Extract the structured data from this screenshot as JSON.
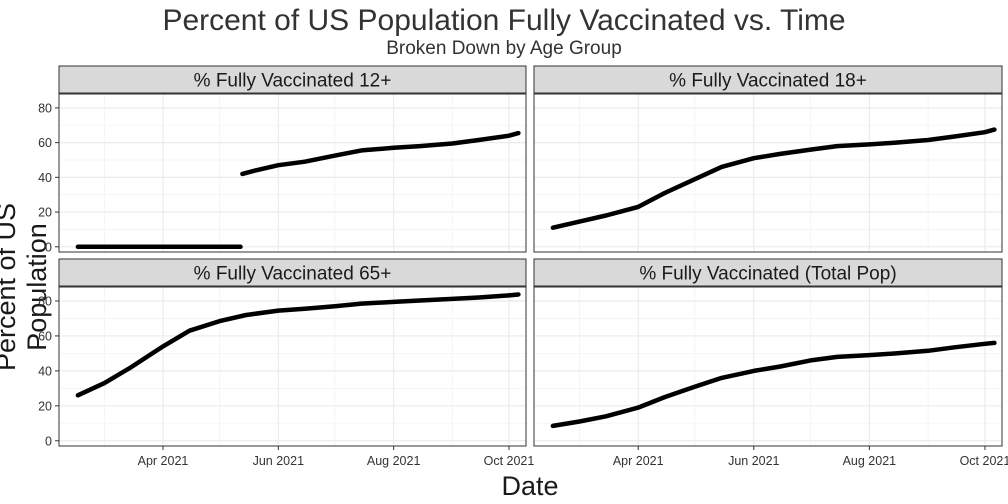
{
  "chart_data": {
    "type": "line",
    "title": "Percent of US Population Fully Vaccinated vs. Time",
    "subtitle": "Broken Down by Age Group",
    "xlabel": "Date",
    "ylabel": "Percent of US Population",
    "ylim": [
      -3,
      88
    ],
    "yticks": [
      0,
      20,
      40,
      60,
      80
    ],
    "xlim": [
      "2021-02-05",
      "2021-10-10"
    ],
    "xticks": [
      {
        "date": "2021-04-01",
        "label": "Apr 2021"
      },
      {
        "date": "2021-06-01",
        "label": "Jun 2021"
      },
      {
        "date": "2021-08-01",
        "label": "Aug 2021"
      },
      {
        "date": "2021-10-01",
        "label": "Oct 2021"
      }
    ],
    "grid": true,
    "facets": [
      {
        "label": "% Fully Vaccinated 12+",
        "segments": [
          {
            "x": [
              "2021-02-15",
              "2021-05-12"
            ],
            "y": [
              0,
              0
            ]
          },
          {
            "x": [
              "2021-05-13",
              "2021-05-20",
              "2021-06-01",
              "2021-06-15",
              "2021-07-01",
              "2021-07-15",
              "2021-08-01",
              "2021-08-15",
              "2021-09-01",
              "2021-09-15",
              "2021-10-01",
              "2021-10-06"
            ],
            "y": [
              42,
              44,
              47,
              49,
              52.5,
              55.5,
              57,
              58,
              59.5,
              61.5,
              64,
              65.5
            ]
          }
        ]
      },
      {
        "label": "% Fully Vaccinated 18+",
        "segments": [
          {
            "x": [
              "2021-02-15",
              "2021-03-01",
              "2021-03-15",
              "2021-04-01",
              "2021-04-15",
              "2021-05-01",
              "2021-05-15",
              "2021-06-01",
              "2021-06-15",
              "2021-07-01",
              "2021-07-15",
              "2021-08-01",
              "2021-08-15",
              "2021-09-01",
              "2021-09-15",
              "2021-10-01",
              "2021-10-06"
            ],
            "y": [
              11,
              14.5,
              18,
              23,
              31,
              39,
              46,
              51,
              53.5,
              56,
              58,
              59,
              60,
              61.5,
              63.5,
              66,
              67.5
            ]
          }
        ]
      },
      {
        "label": "% Fully Vaccinated 65+",
        "segments": [
          {
            "x": [
              "2021-02-15",
              "2021-03-01",
              "2021-03-15",
              "2021-04-01",
              "2021-04-15",
              "2021-05-01",
              "2021-05-15",
              "2021-06-01",
              "2021-06-15",
              "2021-07-01",
              "2021-07-15",
              "2021-08-01",
              "2021-08-15",
              "2021-09-01",
              "2021-09-15",
              "2021-10-01",
              "2021-10-06"
            ],
            "y": [
              26,
              33,
              42,
              54,
              63,
              68.5,
              72,
              74.5,
              75.5,
              77,
              78.5,
              79.5,
              80.3,
              81.2,
              82,
              83.2,
              83.7
            ]
          }
        ]
      },
      {
        "label": "% Fully Vaccinated (Total Pop)",
        "segments": [
          {
            "x": [
              "2021-02-15",
              "2021-03-01",
              "2021-03-15",
              "2021-04-01",
              "2021-04-15",
              "2021-05-01",
              "2021-05-15",
              "2021-06-01",
              "2021-06-15",
              "2021-07-01",
              "2021-07-15",
              "2021-08-01",
              "2021-08-15",
              "2021-09-01",
              "2021-09-15",
              "2021-10-01",
              "2021-10-06"
            ],
            "y": [
              8.5,
              11,
              14,
              19,
              25,
              31,
              36,
              40,
              42.5,
              46,
              48,
              49,
              50,
              51.5,
              53.5,
              55.5,
              56
            ]
          }
        ]
      }
    ],
    "line_color": "#000000",
    "strip_fill": "#d9d9d9",
    "grid_color": "#ebebeb"
  }
}
